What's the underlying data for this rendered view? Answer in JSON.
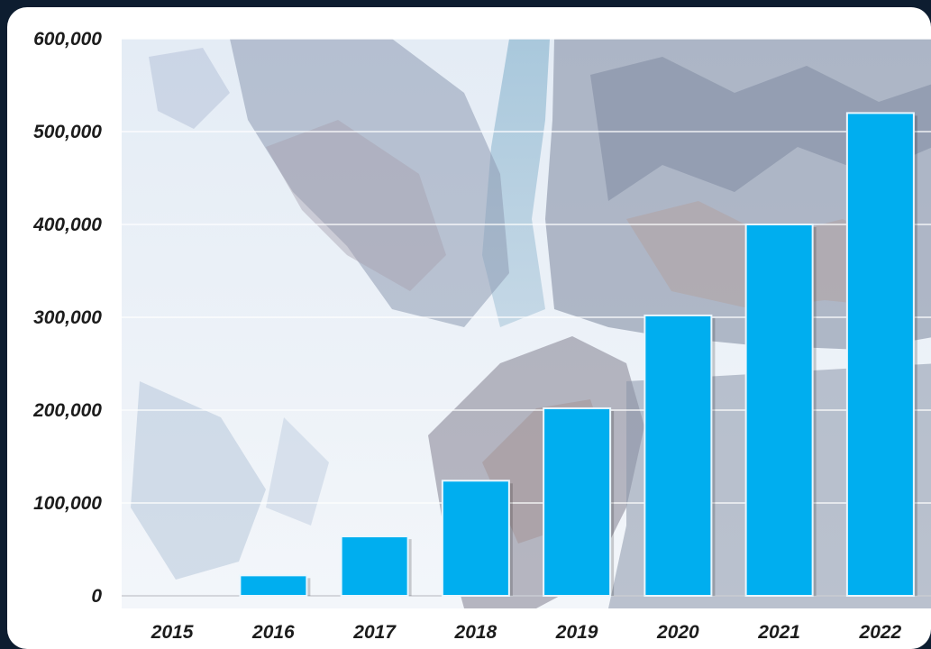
{
  "colors": {
    "page_background": "#0d1d30",
    "panel": "#ffffff",
    "bar_fill": "#00aeef",
    "bar_edge": "#e9f6fd",
    "gridline": "#ffffff",
    "tick_text": "#1c1c1c"
  },
  "chart_data": {
    "type": "bar",
    "categories": [
      "2015",
      "2016",
      "2017",
      "2018",
      "2019",
      "2020",
      "2021",
      "2022"
    ],
    "values": [
      0,
      22000,
      64000,
      124000,
      202000,
      302000,
      400000,
      520000
    ],
    "ylim": [
      0,
      600000
    ],
    "yticks": [
      0,
      100000,
      200000,
      300000,
      400000,
      500000,
      600000
    ],
    "ytick_labels": [
      "0",
      "100,000",
      "200,000",
      "300,000",
      "400,000",
      "500,000",
      "600,000"
    ],
    "title": "",
    "xlabel": "",
    "ylabel": "",
    "grid": true,
    "legend": "none",
    "background": "satellite photo of glaciers and mountains"
  }
}
